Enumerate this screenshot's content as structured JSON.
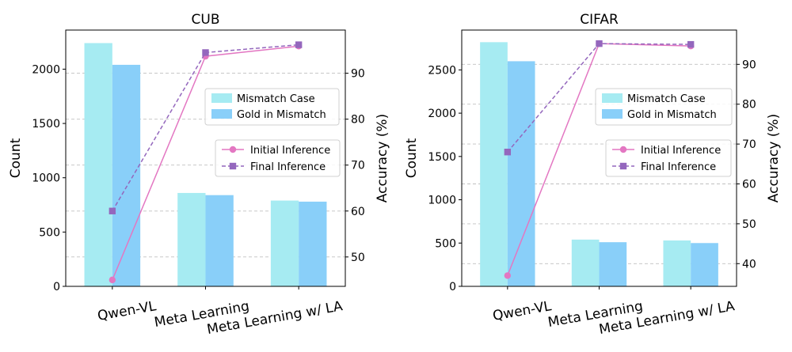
{
  "chart_data": [
    {
      "type": "bar",
      "title": "CUB",
      "xlabel": "",
      "ylabel": "Count",
      "ylabel_right": "Accuracy (%)",
      "categories": [
        "Qwen-VL",
        "Meta Learning",
        "Meta Learning w/ LA"
      ],
      "ylim": [
        0,
        2360
      ],
      "yticks": [
        0,
        500,
        1000,
        1500,
        2000
      ],
      "ylim_right": [
        43.6,
        99.4
      ],
      "yticks_right": [
        50,
        60,
        70,
        80,
        90
      ],
      "grid": "horizontal dashed",
      "bar_series": [
        {
          "name": "Mismatch Case",
          "color": "#a6ebf2",
          "values": [
            2240,
            860,
            790
          ]
        },
        {
          "name": "Gold in Mismatch",
          "color": "#89cff9",
          "values": [
            2040,
            840,
            780
          ]
        }
      ],
      "line_series": [
        {
          "name": "Initial Inference",
          "color": "#e377c2",
          "marker": "circle",
          "dash": "solid",
          "values": [
            45.0,
            93.7,
            95.9
          ]
        },
        {
          "name": "Final Inference",
          "color": "#9467bd",
          "marker": "square",
          "dash": "dashed",
          "values": [
            60.0,
            94.5,
            96.2
          ]
        }
      ],
      "legend_bars": "center-right",
      "legend_lines": "center-right"
    },
    {
      "type": "bar",
      "title": "CIFAR",
      "xlabel": "",
      "ylabel": "Count",
      "ylabel_right": "Accuracy (%)",
      "categories": [
        "Qwen-VL",
        "Meta Learning",
        "Meta Learning w/ LA"
      ],
      "ylim": [
        0,
        2960
      ],
      "yticks": [
        0,
        500,
        1000,
        1500,
        2000,
        2500
      ],
      "ylim_right": [
        34.3,
        98.6
      ],
      "yticks_right": [
        40,
        50,
        60,
        70,
        80,
        90
      ],
      "grid": "horizontal dashed",
      "bar_series": [
        {
          "name": "Mismatch Case",
          "color": "#a6ebf2",
          "values": [
            2820,
            540,
            530
          ]
        },
        {
          "name": "Gold in Mismatch",
          "color": "#89cff9",
          "values": [
            2600,
            510,
            500
          ]
        }
      ],
      "line_series": [
        {
          "name": "Initial Inference",
          "color": "#e377c2",
          "marker": "circle",
          "dash": "solid",
          "values": [
            37.0,
            95.2,
            94.6
          ]
        },
        {
          "name": "Final Inference",
          "color": "#9467bd",
          "marker": "square",
          "dash": "dashed",
          "values": [
            68.0,
            95.2,
            95.0
          ]
        }
      ],
      "legend_bars": "top-right",
      "legend_lines": "center-right"
    }
  ]
}
